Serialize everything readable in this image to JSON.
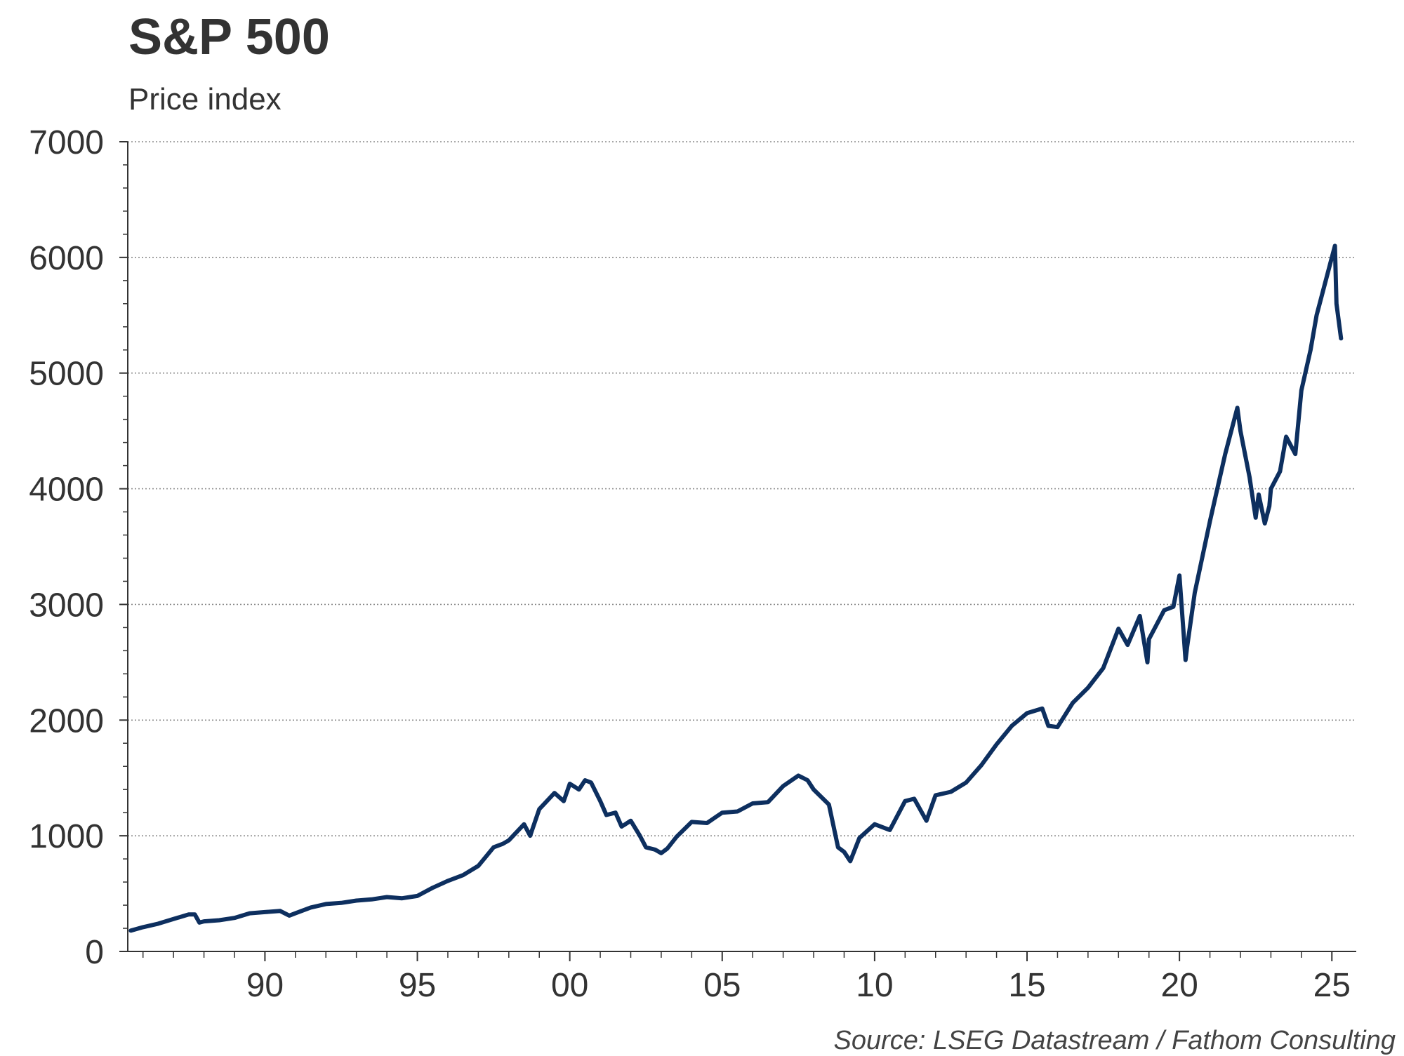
{
  "chart_data": {
    "type": "line",
    "title": "S&P 500",
    "subtitle": "Price index",
    "source": "Source: LSEG Datastream / Fathom Consulting",
    "ylim": [
      0,
      7000
    ],
    "xlim": [
      1985.5,
      2025.8
    ],
    "grid": true,
    "y_ticks": [
      0,
      1000,
      2000,
      3000,
      4000,
      5000,
      6000,
      7000
    ],
    "y_tick_labels": [
      "0",
      "1000",
      "2000",
      "3000",
      "4000",
      "5000",
      "6000",
      "7000"
    ],
    "x_ticks": [
      1990,
      1995,
      2000,
      2005,
      2010,
      2015,
      2020,
      2025
    ],
    "x_tick_labels": [
      "90",
      "95",
      "00",
      "05",
      "10",
      "15",
      "20",
      "25"
    ],
    "line_color": "#0d2f5f",
    "series": [
      {
        "name": "S&P 500",
        "x": [
          1985.6,
          1986.0,
          1986.5,
          1987.0,
          1987.5,
          1987.7,
          1987.85,
          1988.0,
          1988.5,
          1989.0,
          1989.5,
          1990.0,
          1990.5,
          1990.8,
          1991.0,
          1991.5,
          1992.0,
          1992.5,
          1993.0,
          1993.5,
          1994.0,
          1994.5,
          1995.0,
          1995.5,
          1996.0,
          1996.5,
          1997.0,
          1997.5,
          1997.8,
          1998.0,
          1998.5,
          1998.7,
          1999.0,
          1999.5,
          1999.8,
          2000.0,
          2000.3,
          2000.5,
          2000.7,
          2001.0,
          2001.2,
          2001.5,
          2001.7,
          2002.0,
          2002.3,
          2002.5,
          2002.8,
          2003.0,
          2003.2,
          2003.5,
          2004.0,
          2004.5,
          2005.0,
          2005.5,
          2006.0,
          2006.5,
          2007.0,
          2007.5,
          2007.8,
          2008.0,
          2008.5,
          2008.8,
          2009.0,
          2009.2,
          2009.5,
          2010.0,
          2010.5,
          2011.0,
          2011.3,
          2011.7,
          2012.0,
          2012.5,
          2013.0,
          2013.5,
          2014.0,
          2014.5,
          2015.0,
          2015.5,
          2015.7,
          2016.0,
          2016.5,
          2017.0,
          2017.5,
          2018.0,
          2018.3,
          2018.7,
          2018.95,
          2019.0,
          2019.5,
          2019.8,
          2020.0,
          2020.2,
          2020.25,
          2020.5,
          2021.0,
          2021.5,
          2021.9,
          2022.0,
          2022.3,
          2022.5,
          2022.6,
          2022.8,
          2022.95,
          2023.0,
          2023.3,
          2023.5,
          2023.8,
          2024.0,
          2024.3,
          2024.5,
          2024.7,
          2024.9,
          2025.1,
          2025.15,
          2025.3
        ],
        "values": [
          180,
          210,
          240,
          280,
          320,
          320,
          250,
          260,
          270,
          290,
          330,
          340,
          350,
          310,
          330,
          380,
          410,
          420,
          440,
          450,
          470,
          460,
          480,
          550,
          610,
          660,
          740,
          900,
          930,
          960,
          1100,
          1000,
          1230,
          1370,
          1300,
          1450,
          1400,
          1480,
          1460,
          1300,
          1180,
          1200,
          1080,
          1130,
          1000,
          900,
          880,
          850,
          890,
          990,
          1120,
          1110,
          1200,
          1210,
          1280,
          1290,
          1430,
          1520,
          1480,
          1400,
          1270,
          900,
          860,
          780,
          980,
          1100,
          1050,
          1300,
          1320,
          1130,
          1350,
          1380,
          1460,
          1610,
          1790,
          1950,
          2060,
          2100,
          1950,
          1940,
          2150,
          2280,
          2450,
          2790,
          2650,
          2900,
          2500,
          2700,
          2950,
          2980,
          3250,
          2520,
          2630,
          3100,
          3720,
          4300,
          4700,
          4500,
          4100,
          3750,
          3950,
          3700,
          3850,
          4000,
          4150,
          4450,
          4300,
          4850,
          5200,
          5500,
          5700,
          5900,
          6100,
          5600,
          5300
        ]
      }
    ]
  }
}
